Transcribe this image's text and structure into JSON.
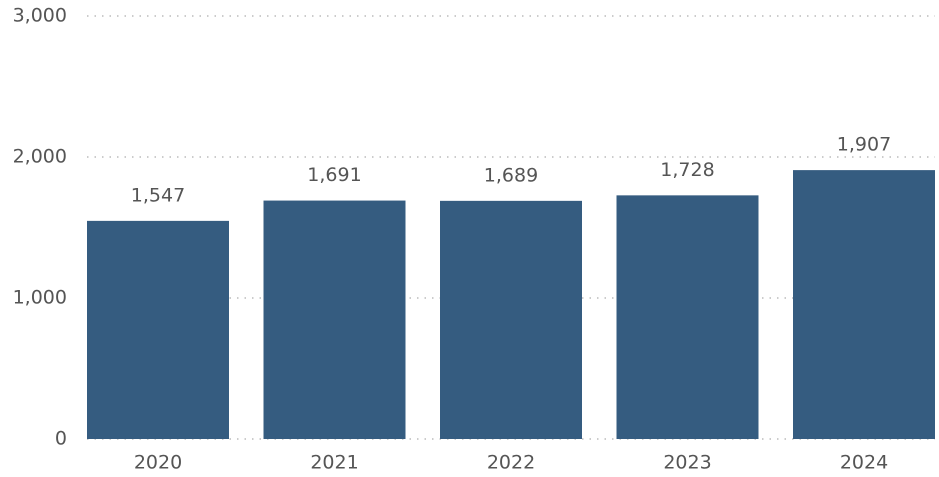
{
  "chart_data": {
    "type": "bar",
    "categories": [
      "2020",
      "2021",
      "2022",
      "2023",
      "2024"
    ],
    "values": [
      1547,
      1691,
      1689,
      1728,
      1907
    ],
    "value_labels": [
      "1,547",
      "1,691",
      "1,689",
      "1,728",
      "1,907"
    ],
    "color": "#355c80",
    "ylim": [
      0,
      3000
    ],
    "yticks": [
      0,
      {
        "value": 1000,
        "label": "1,000"
      },
      {
        "value": 2000,
        "label": "2,000"
      },
      {
        "value": 3000,
        "label": "3,000"
      }
    ],
    "grid": true
  }
}
